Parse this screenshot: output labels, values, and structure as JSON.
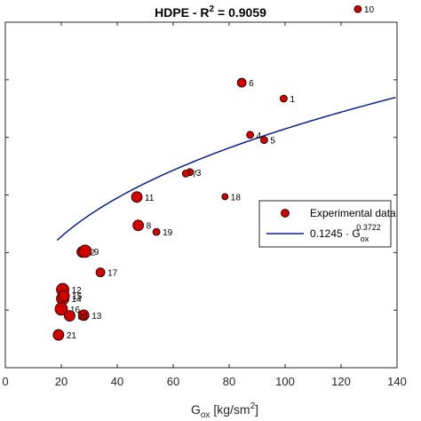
{
  "chart_data": {
    "type": "scatter",
    "title_main": "HDPE - R",
    "title_sup": "2",
    "title_tail": " = 0.9059",
    "xlabel_main": "G",
    "xlabel_sub": "ox",
    "xlabel_tail": " [kg/sm",
    "xlabel_sup": "2",
    "xlabel_close": "]",
    "ylabel": "",
    "xlim": [
      0,
      140
    ],
    "ylim": [
      0,
      1
    ],
    "y_tick_count": 6,
    "x_ticks": [
      0,
      20,
      40,
      60,
      80,
      100,
      120,
      140
    ],
    "x_tick_labels": [
      "0",
      "20",
      "40",
      "60",
      "80",
      "100",
      "120",
      "140"
    ],
    "grid": false,
    "legend_position": "right",
    "marker_color": "#d40000",
    "fit_color": "#0a1e9a",
    "series": [
      {
        "name": "Experimental data",
        "points": [
          {
            "label": "1",
            "x": 99.5,
            "y": 0.779,
            "size": 4
          },
          {
            "label": "2",
            "x": 27.5,
            "y": 0.335,
            "size": 6
          },
          {
            "label": "3",
            "x": 66.0,
            "y": 0.566,
            "size": 4
          },
          {
            "label": "4",
            "x": 87.5,
            "y": 0.674,
            "size": 4
          },
          {
            "label": "5",
            "x": 92.5,
            "y": 0.659,
            "size": 4
          },
          {
            "label": "6",
            "x": 84.5,
            "y": 0.825,
            "size": 5
          },
          {
            "label": "7",
            "x": 64.5,
            "y": 0.562,
            "size": 4
          },
          {
            "label": "8",
            "x": 47.5,
            "y": 0.412,
            "size": 6
          },
          {
            "label": "9",
            "x": 28.5,
            "y": 0.337,
            "size": 7
          },
          {
            "label": "10",
            "x": 126.0,
            "y": 1.038,
            "size": 4
          },
          {
            "label": "11",
            "x": 47.0,
            "y": 0.494,
            "size": 6
          },
          {
            "label": "12",
            "x": 20.5,
            "y": 0.226,
            "size": 7
          },
          {
            "label": "13",
            "x": 28.0,
            "y": 0.152,
            "size": 6
          },
          {
            "label": "14",
            "x": 20.5,
            "y": 0.2,
            "size": 7
          },
          {
            "label": "15",
            "x": 21.0,
            "y": 0.208,
            "size": 6
          },
          {
            "label": "16",
            "x": 20.0,
            "y": 0.17,
            "size": 7
          },
          {
            "label": "17",
            "x": 34.0,
            "y": 0.276,
            "size": 5
          },
          {
            "label": "18",
            "x": 78.5,
            "y": 0.495,
            "size": 3.5
          },
          {
            "label": "19",
            "x": 54.0,
            "y": 0.393,
            "size": 4
          },
          {
            "label": "20",
            "x": 23.0,
            "y": 0.15,
            "size": 6
          },
          {
            "label": "21",
            "x": 19.0,
            "y": 0.095,
            "size": 6
          }
        ]
      },
      {
        "name": "0.1245 · G",
        "name_sub": "ox",
        "name_sup": "0.3722",
        "fit": {
          "coefficient": 0.1245,
          "exponent": 0.3722,
          "x_start": 18.5,
          "x_end": 139.5
        }
      }
    ]
  }
}
